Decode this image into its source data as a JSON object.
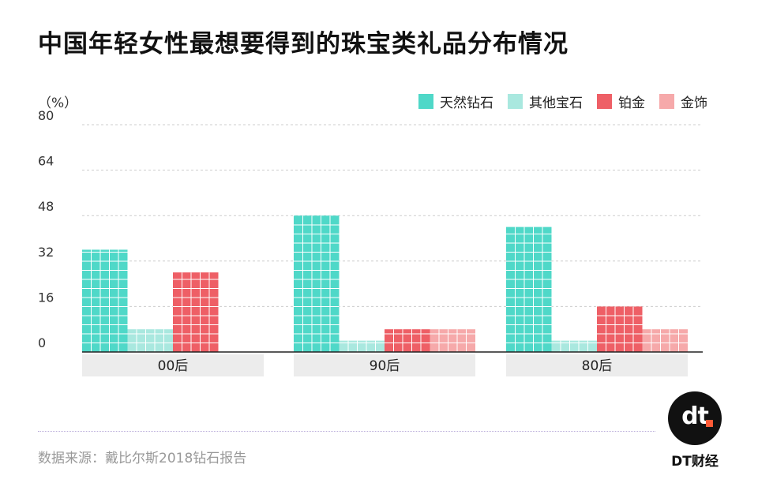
{
  "title": "中国年轻女性最想要得到的珠宝类礼品分布情况",
  "unit": "（%）",
  "source": "数据来源：戴比尔斯2018钻石报告",
  "brand": {
    "logo_text": "dt",
    "name": "DT财经"
  },
  "colors": {
    "natural_diamond": "#4fd8c8",
    "other_gems": "#a9e8df",
    "platinum": "#ee5f66",
    "gold_jewelry": "#f6a9aa",
    "grid": "#cccccc",
    "category_band": "#ececec"
  },
  "chart_data": {
    "type": "bar",
    "title": "中国年轻女性最想要得到的珠宝类礼品分布情况",
    "xlabel": "",
    "ylabel": "（%）",
    "categories": [
      "00后",
      "90后",
      "80后"
    ],
    "series": [
      {
        "name": "天然钻石",
        "color": "#4fd8c8",
        "values": [
          36,
          48,
          44
        ]
      },
      {
        "name": "其他宝石",
        "color": "#a9e8df",
        "values": [
          8,
          4,
          4
        ]
      },
      {
        "name": "铂金",
        "color": "#ee5f66",
        "values": [
          28,
          8,
          16
        ]
      },
      {
        "name": "金饰",
        "color": "#f6a9aa",
        "values": [
          0,
          8,
          8
        ]
      }
    ],
    "ylim": [
      0,
      80
    ],
    "yticks": [
      0,
      16,
      32,
      48,
      64,
      80
    ],
    "grid": true,
    "legend_position": "top-right"
  }
}
